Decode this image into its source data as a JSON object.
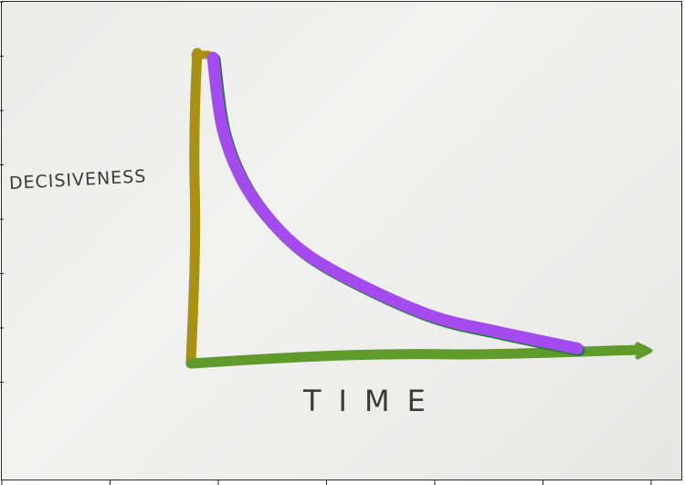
{
  "chart_data": {
    "type": "line",
    "title": "",
    "xlabel": "TIME",
    "ylabel": "DECISIVENESS",
    "grid": false,
    "legend": "none",
    "x": [
      0.2,
      0.3,
      0.5,
      0.8,
      1.2,
      1.8,
      2.5,
      3.2,
      4.0
    ],
    "series": [
      {
        "values": [
          9.4,
          7.2,
          5.6,
          4.3,
          3.2,
          2.2,
          1.3,
          0.8,
          0.3
        ],
        "color": "#a44bf0"
      }
    ],
    "xlim": [
      0,
      5.0
    ],
    "ylim": [
      0,
      10
    ],
    "colors": {
      "y_axis": "#a89112",
      "x_axis": "#5f9a2a",
      "curve": "#a44bf0",
      "curve_shadow": "#1f7a3a",
      "text": "#3a3a3a"
    }
  }
}
